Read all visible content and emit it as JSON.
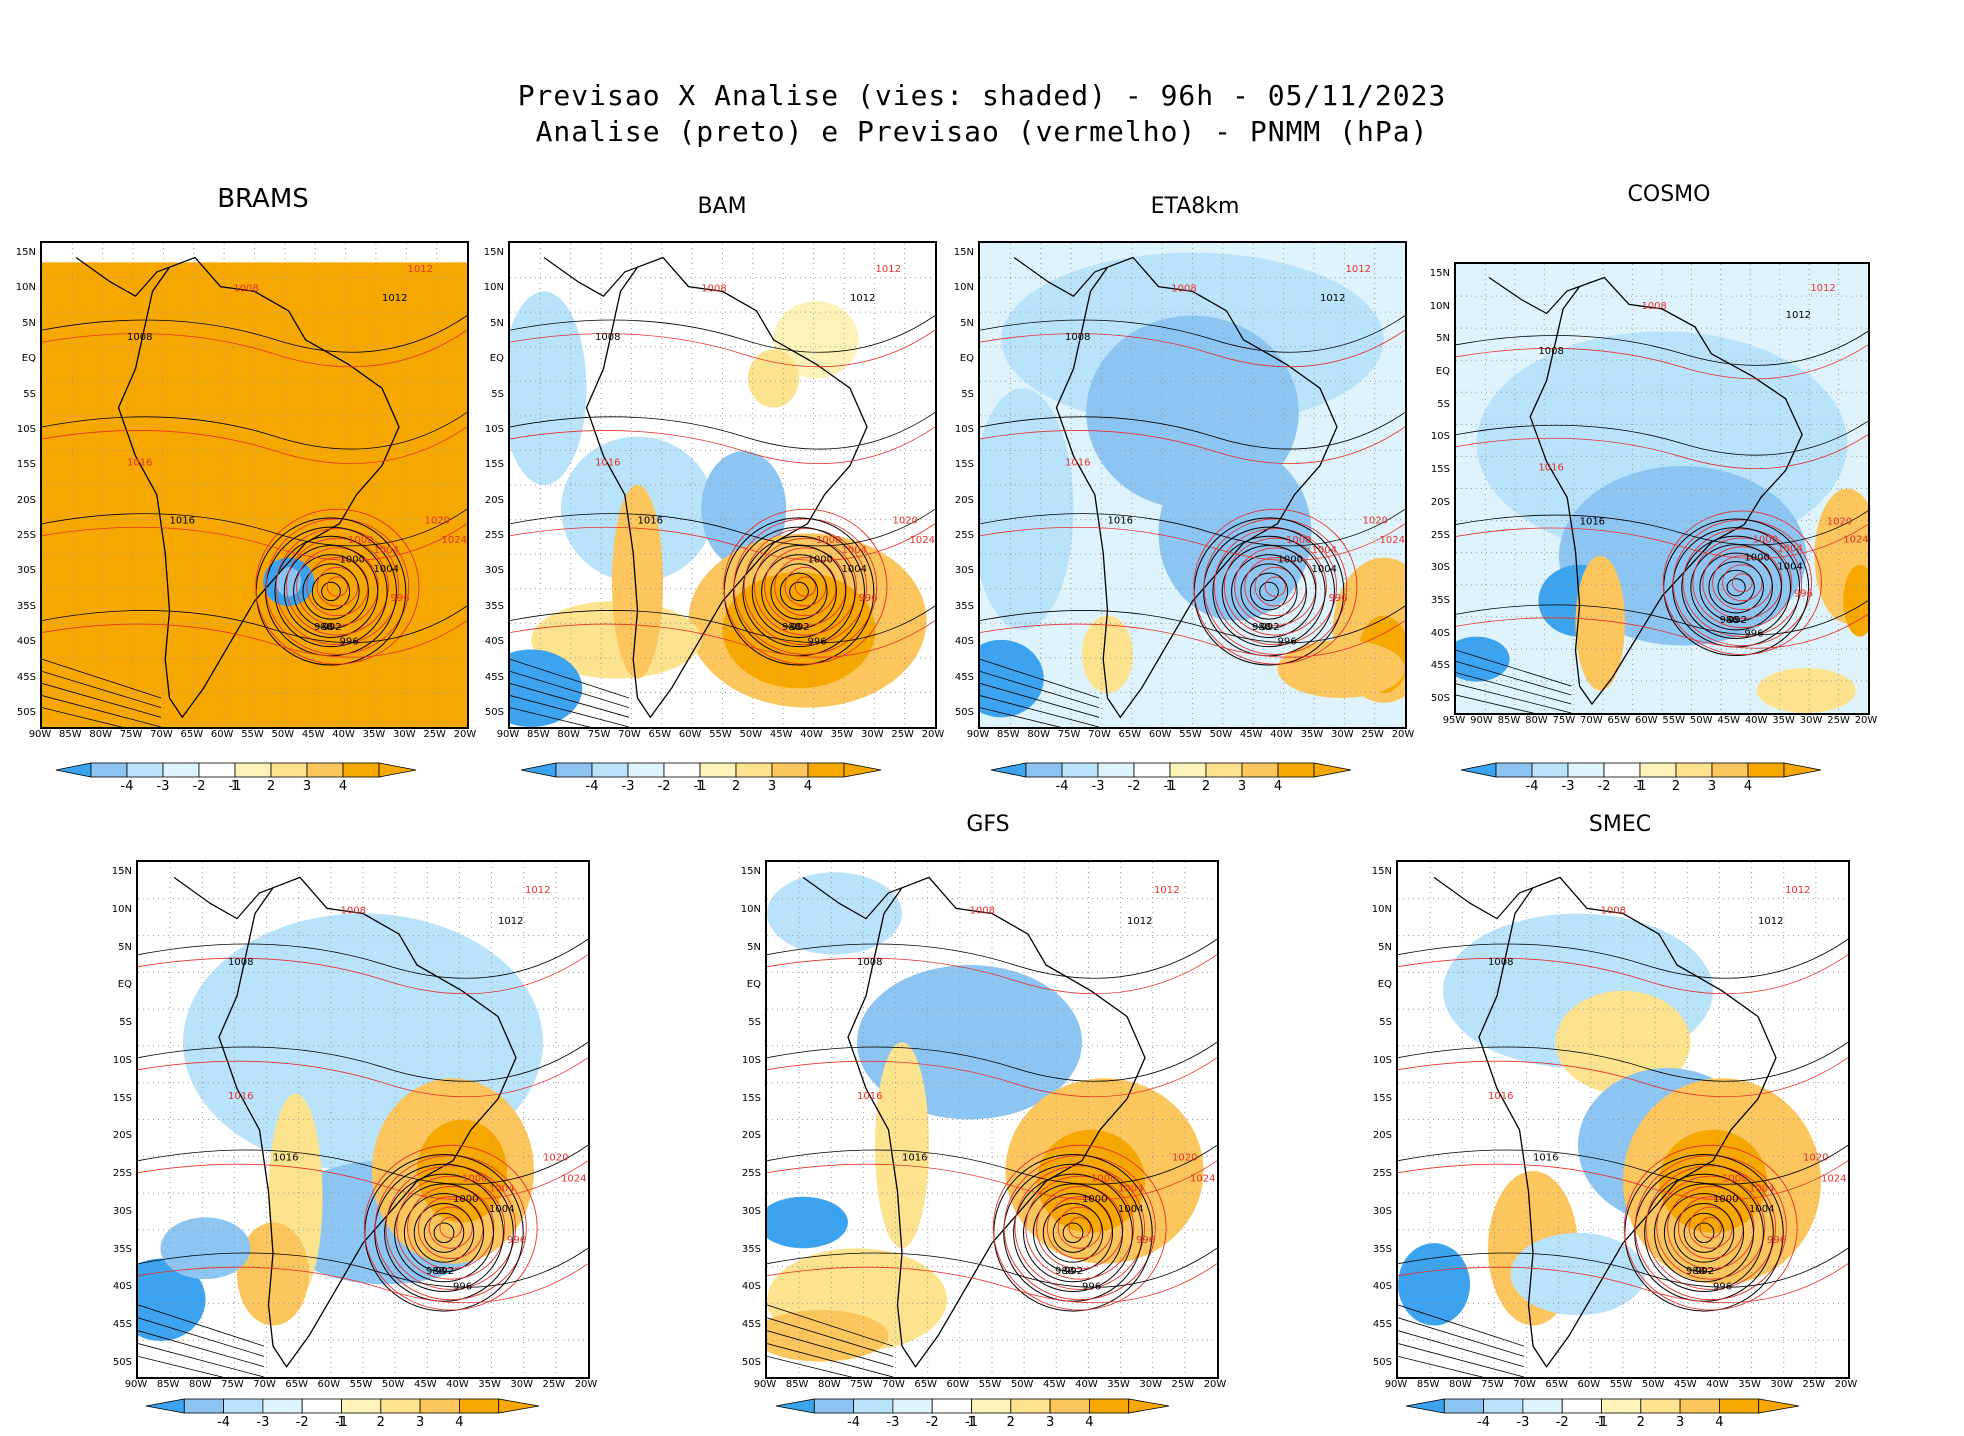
{
  "title": {
    "line1": "Previsao X Analise (vies: shaded) - 96h - 05/11/2023",
    "line2": "Analise (preto) e Previsao (vermelho) - PNMM (hPa)"
  },
  "colors": {
    "neg4": "#3ba3ef",
    "neg3": "#8cc4f2",
    "neg2": "#b9e2fb",
    "neg1": "#def3fb",
    "zero": "#ffffff",
    "pos1": "#fdf3b8",
    "pos2": "#fde38e",
    "pos3": "#fcc65c",
    "pos4": "#f7a800",
    "analysis_contour": "#000000",
    "forecast_contour": "#e8302a"
  },
  "panels": [
    {
      "id": "brams",
      "title": "BRAMS",
      "lon_labels": [
        "90W",
        "85W",
        "80W",
        "75W",
        "70W",
        "65W",
        "60W",
        "55W",
        "50W",
        "45W",
        "40W",
        "35W",
        "30W",
        "25W",
        "20W"
      ],
      "lat_labels": [
        "15N",
        "10N",
        "5N",
        "EQ",
        "5S",
        "10S",
        "15S",
        "20S",
        "25S",
        "30S",
        "35S",
        "40S",
        "45S",
        "50S"
      ],
      "dominant_bias": "pos4"
    },
    {
      "id": "bam",
      "title": "BAM",
      "lon_labels": [
        "90W",
        "85W",
        "80W",
        "75W",
        "70W",
        "65W",
        "60W",
        "55W",
        "50W",
        "45W",
        "40W",
        "35W",
        "30W",
        "25W",
        "20W"
      ],
      "lat_labels": [
        "15N",
        "10N",
        "5N",
        "EQ",
        "5S",
        "10S",
        "15S",
        "20S",
        "25S",
        "30S",
        "35S",
        "40S",
        "45S",
        "50S"
      ],
      "dominant_bias": "mixed"
    },
    {
      "id": "eta8km",
      "title": "ETA8km",
      "lon_labels": [
        "90W",
        "85W",
        "80W",
        "75W",
        "70W",
        "65W",
        "60W",
        "55W",
        "50W",
        "45W",
        "40W",
        "35W",
        "30W",
        "25W",
        "20W"
      ],
      "lat_labels": [
        "15N",
        "10N",
        "5N",
        "EQ",
        "5S",
        "10S",
        "15S",
        "20S",
        "25S",
        "30S",
        "35S",
        "40S",
        "45S",
        "50S"
      ],
      "dominant_bias": "negative"
    },
    {
      "id": "cosmo",
      "title": "COSMO",
      "lon_labels": [
        "95W",
        "90W",
        "85W",
        "80W",
        "75W",
        "70W",
        "65W",
        "60W",
        "55W",
        "50W",
        "45W",
        "40W",
        "35W",
        "30W",
        "25W",
        "20W"
      ],
      "lat_labels": [
        "15N",
        "10N",
        "5N",
        "EQ",
        "5S",
        "10S",
        "15S",
        "20S",
        "25S",
        "30S",
        "35S",
        "40S",
        "45S",
        "50S"
      ],
      "dominant_bias": "negative"
    },
    {
      "id": "unnamed",
      "title": "",
      "lon_labels": [
        "90W",
        "85W",
        "80W",
        "75W",
        "70W",
        "65W",
        "60W",
        "55W",
        "50W",
        "45W",
        "40W",
        "35W",
        "30W",
        "25W",
        "20W"
      ],
      "lat_labels": [
        "15N",
        "10N",
        "5N",
        "EQ",
        "5S",
        "10S",
        "15S",
        "20S",
        "25S",
        "30S",
        "35S",
        "40S",
        "45S",
        "50S"
      ],
      "dominant_bias": "mixed"
    },
    {
      "id": "gfs",
      "title": "GFS",
      "lon_labels": [
        "90W",
        "85W",
        "80W",
        "75W",
        "70W",
        "65W",
        "60W",
        "55W",
        "50W",
        "45W",
        "40W",
        "35W",
        "30W",
        "25W",
        "20W"
      ],
      "lat_labels": [
        "15N",
        "10N",
        "5N",
        "EQ",
        "5S",
        "10S",
        "15S",
        "20S",
        "25S",
        "30S",
        "35S",
        "40S",
        "45S",
        "50S"
      ],
      "dominant_bias": "mixed"
    },
    {
      "id": "smec",
      "title": "SMEC",
      "lon_labels": [
        "90W",
        "85W",
        "80W",
        "75W",
        "70W",
        "65W",
        "60W",
        "55W",
        "50W",
        "45W",
        "40W",
        "35W",
        "30W",
        "25W",
        "20W"
      ],
      "lat_labels": [
        "15N",
        "10N",
        "5N",
        "EQ",
        "5S",
        "10S",
        "15S",
        "20S",
        "25S",
        "30S",
        "35S",
        "40S",
        "45S",
        "50S"
      ],
      "dominant_bias": "mixed"
    }
  ],
  "contour_labels": {
    "analysis": [
      "1008",
      "1012",
      "1016",
      "1000",
      "1004",
      "992",
      "988",
      "996"
    ],
    "forecast": [
      "1008",
      "1012",
      "1016",
      "1020",
      "1024",
      "1000",
      "1004",
      "996"
    ]
  },
  "colorbar": {
    "labels": [
      "-4",
      "-3",
      "-2",
      "-1",
      "1",
      "2",
      "3",
      "4"
    ],
    "bins": [
      "neg4",
      "neg4",
      "neg3",
      "neg2",
      "neg1",
      "zero",
      "pos1",
      "pos2",
      "pos3",
      "pos4",
      "pos4"
    ]
  }
}
